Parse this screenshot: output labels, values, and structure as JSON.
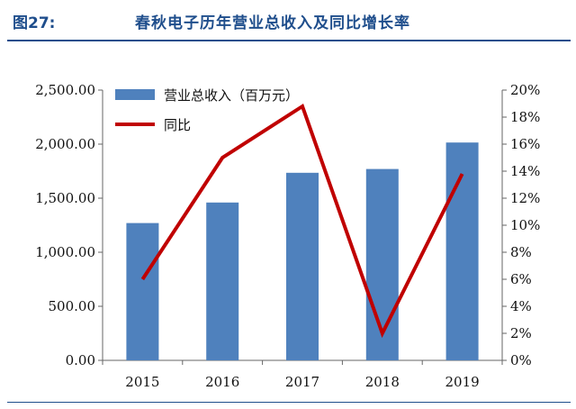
{
  "figure": {
    "label": "图27:",
    "title": "春秋电子历年营业总收入及同比增长率"
  },
  "colors": {
    "bar": "#4f81bd",
    "line": "#c00000",
    "header": "#1f4e8c",
    "axis": "#666666"
  },
  "chart_data": {
    "type": "bar",
    "categories": [
      "2015",
      "2016",
      "2017",
      "2018",
      "2019"
    ],
    "series": [
      {
        "name": "营业总收入（百万元）",
        "type": "bar",
        "axis": "left",
        "values": [
          1270,
          1460,
          1735,
          1770,
          2015
        ]
      },
      {
        "name": "同比",
        "type": "line",
        "axis": "right",
        "values": [
          6.0,
          15.0,
          18.8,
          2.0,
          13.8
        ]
      }
    ],
    "y_left": {
      "ylim": [
        0,
        2500
      ],
      "ticks": [
        0,
        500,
        1000,
        1500,
        2000,
        2500
      ],
      "tick_labels": [
        "0.00",
        "500.00",
        "1,000.00",
        "1,500.00",
        "2,000.00",
        "2,500.00"
      ]
    },
    "y_right": {
      "ylim": [
        0,
        20
      ],
      "ticks": [
        0,
        2,
        4,
        6,
        8,
        10,
        12,
        14,
        16,
        18,
        20
      ],
      "tick_labels": [
        "0%",
        "2%",
        "4%",
        "6%",
        "8%",
        "10%",
        "12%",
        "14%",
        "16%",
        "18%",
        "20%"
      ]
    },
    "legend_position": "top-left",
    "grid": false
  }
}
